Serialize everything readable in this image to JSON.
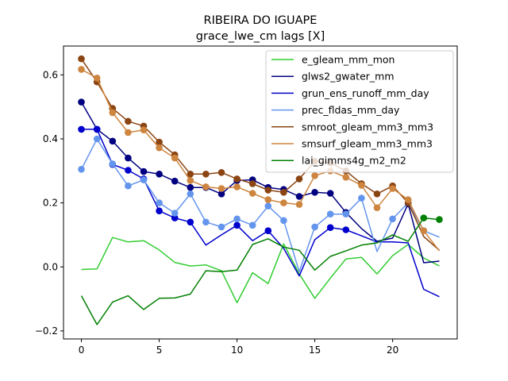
{
  "chart_data": {
    "type": "line",
    "title": "RIBEIRA DO IGUAPE",
    "subtitle": "grace_lwe_cm lags [X]",
    "xlabel": "",
    "ylabel": "",
    "xlim": [
      -1.15,
      24.15
    ],
    "ylim": [
      -0.225,
      0.69
    ],
    "xticks": [
      0,
      5,
      10,
      15,
      20
    ],
    "yticks": [
      -0.2,
      0.0,
      0.2,
      0.4,
      0.6
    ],
    "ytick_labels": [
      "−0.2",
      "0.0",
      "0.2",
      "0.4",
      "0.6"
    ],
    "grid": false,
    "legend_position": "top-right",
    "x": [
      0,
      1,
      2,
      3,
      4,
      5,
      6,
      7,
      8,
      9,
      10,
      11,
      12,
      13,
      14,
      15,
      16,
      17,
      18,
      19,
      20,
      21,
      22,
      23
    ],
    "series": [
      {
        "name": "e_gleam_mm_mon",
        "color": "#32cd32",
        "values": [
          -0.008,
          -0.006,
          0.092,
          0.078,
          0.082,
          0.053,
          0.014,
          0.003,
          0.006,
          -0.012,
          -0.112,
          -0.018,
          -0.052,
          0.072,
          -0.022,
          -0.098,
          -0.035,
          0.025,
          0.03,
          -0.022,
          0.035,
          0.07,
          0.028,
          0.003
        ],
        "markers": []
      },
      {
        "name": "glws2_gwater_mm",
        "color": "#000080",
        "values": [
          0.515,
          0.43,
          0.393,
          0.34,
          0.298,
          0.29,
          0.268,
          0.248,
          0.248,
          0.228,
          0.27,
          0.272,
          0.248,
          0.242,
          0.22,
          0.233,
          0.23,
          0.17,
          0.12,
          0.08,
          0.09,
          0.197,
          0.013,
          0.018
        ],
        "markers": [
          0,
          1,
          2,
          3,
          4,
          5,
          6,
          7,
          8,
          9,
          10,
          11,
          12,
          13,
          14,
          15,
          16,
          17,
          21
        ]
      },
      {
        "name": "grun_ens_runoff_mm_day",
        "color": "#0000cd",
        "values": [
          0.43,
          0.43,
          0.32,
          0.302,
          0.275,
          0.175,
          0.153,
          0.14,
          0.068,
          0.1,
          0.13,
          0.082,
          0.113,
          0.058,
          -0.028,
          0.085,
          0.123,
          0.116,
          0.097,
          0.078,
          0.078,
          0.075,
          -0.07,
          -0.093
        ],
        "markers": [
          0,
          1,
          2,
          3,
          4,
          5,
          6,
          7,
          10,
          12,
          16,
          17
        ]
      },
      {
        "name": "prec_fldas_mm_day",
        "color": "#6495ed",
        "values": [
          0.305,
          0.4,
          0.322,
          0.253,
          0.272,
          0.2,
          0.168,
          0.228,
          0.14,
          0.125,
          0.15,
          0.13,
          0.19,
          0.145,
          -0.015,
          0.125,
          0.165,
          0.165,
          0.215,
          0.048,
          0.15,
          0.2,
          0.113,
          0.093
        ],
        "markers": [
          0,
          1,
          2,
          3,
          4,
          5,
          6,
          7,
          8,
          9,
          10,
          11,
          12,
          13,
          15,
          16,
          17,
          18,
          20,
          22
        ]
      },
      {
        "name": "smroot_gleam_mm3_mm3",
        "color": "#8b4513",
        "values": [
          0.65,
          0.578,
          0.495,
          0.455,
          0.44,
          0.39,
          0.35,
          0.29,
          0.29,
          0.295,
          0.275,
          0.26,
          0.24,
          0.233,
          0.275,
          0.33,
          0.325,
          0.3,
          0.26,
          0.228,
          0.253,
          0.2,
          0.095,
          0.052
        ],
        "markers": [
          0,
          1,
          2,
          3,
          4,
          5,
          6,
          7,
          8,
          9,
          10,
          11,
          12,
          13,
          14,
          15,
          16,
          17,
          18,
          19,
          20,
          21
        ]
      },
      {
        "name": "smsurf_gleam_mm3_mm3",
        "color": "#cd853f",
        "values": [
          0.617,
          0.59,
          0.482,
          0.42,
          0.428,
          0.372,
          0.34,
          0.27,
          0.25,
          0.245,
          0.25,
          0.23,
          0.21,
          0.2,
          0.195,
          0.285,
          0.3,
          0.28,
          0.255,
          0.185,
          0.245,
          0.21,
          0.113,
          0.05
        ],
        "markers": [
          0,
          1,
          2,
          3,
          4,
          5,
          6,
          7,
          8,
          9,
          10,
          11,
          12,
          13,
          14,
          15,
          16,
          17,
          18,
          19,
          20,
          21,
          22
        ]
      },
      {
        "name": "lai_gimms4g_m2_m2",
        "color": "#008000",
        "values": [
          -0.09,
          -0.18,
          -0.11,
          -0.09,
          -0.133,
          -0.098,
          -0.097,
          -0.085,
          -0.012,
          -0.015,
          -0.01,
          0.07,
          0.088,
          0.062,
          0.052,
          -0.01,
          0.033,
          0.05,
          0.068,
          0.075,
          0.1,
          0.08,
          0.153,
          0.148
        ],
        "markers": [
          22,
          23
        ]
      }
    ]
  }
}
